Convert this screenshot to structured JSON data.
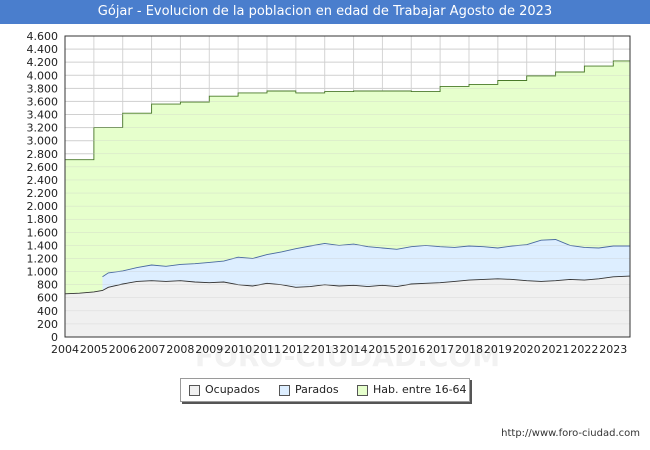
{
  "header": {
    "title": "Gójar - Evolucion de la poblacion en edad de Trabajar Agosto de 2023"
  },
  "source": {
    "url": "http://www.foro-ciudad.com"
  },
  "watermark": "FORO-CIUDAD.COM",
  "legend": {
    "items": [
      {
        "label": "Ocupados",
        "color": "#f0f0f0"
      },
      {
        "label": "Parados",
        "color": "#ddeeff"
      },
      {
        "label": "Hab. entre 16-64",
        "color": "#e6ffcc"
      }
    ]
  },
  "chart_data": {
    "type": "area",
    "title": "Gójar - Evolucion de la poblacion en edad de Trabajar Agosto de 2023",
    "xlabel": "",
    "ylabel": "",
    "xlim": [
      2004,
      2023.58
    ],
    "ylim": [
      0,
      4600
    ],
    "yticks": [
      0,
      200,
      400,
      600,
      800,
      1000,
      1200,
      1400,
      1600,
      1800,
      2000,
      2200,
      2400,
      2600,
      2800,
      3000,
      3200,
      3400,
      3600,
      3800,
      4000,
      4200,
      4400,
      4600
    ],
    "ytick_labels": [
      "0",
      "200",
      "400",
      "600",
      "800",
      "1.000",
      "1.200",
      "1.400",
      "1.600",
      "1.800",
      "2.000",
      "2.200",
      "2.400",
      "2.600",
      "2.800",
      "3.000",
      "3.200",
      "3.400",
      "3.600",
      "3.800",
      "4.000",
      "4.200",
      "4.400",
      "4.600"
    ],
    "xticks": [
      "2004",
      "2005",
      "2006",
      "2007",
      "2008",
      "2009",
      "2010",
      "2011",
      "2012",
      "2013",
      "2014",
      "2015",
      "2016",
      "2017",
      "2018",
      "2019",
      "2020",
      "2021",
      "2022",
      "2023"
    ],
    "grid": true,
    "legend_position": "bottom-center",
    "series": [
      {
        "name": "Hab. entre 16-64",
        "color": "#e6ffcc",
        "line": "#4a7a2a",
        "step": true,
        "x": [
          2004,
          2005,
          2006,
          2007,
          2008,
          2009,
          2010,
          2011,
          2012,
          2013,
          2014,
          2015,
          2016,
          2017,
          2018,
          2019,
          2020,
          2021,
          2022,
          2023,
          2023.58
        ],
        "values": [
          2710,
          3200,
          3420,
          3560,
          3590,
          3680,
          3730,
          3760,
          3730,
          3750,
          3760,
          3760,
          3750,
          3830,
          3860,
          3920,
          3990,
          4050,
          4140,
          4220,
          4220
        ]
      },
      {
        "name": "Parados",
        "color": "#ddeeff",
        "line": "#4a6aa0",
        "step": false,
        "x": [
          2005.3,
          2005.5,
          2006,
          2006.5,
          2007,
          2007.5,
          2008,
          2008.5,
          2009,
          2009.5,
          2010,
          2010.5,
          2011,
          2011.5,
          2012,
          2012.5,
          2013,
          2013.5,
          2014,
          2014.5,
          2015,
          2015.5,
          2016,
          2016.5,
          2017,
          2017.5,
          2018,
          2018.5,
          2019,
          2019.5,
          2020,
          2020.5,
          2021,
          2021.5,
          2022,
          2022.5,
          2023,
          2023.58
        ],
        "values": [
          920,
          980,
          1010,
          1060,
          1100,
          1080,
          1110,
          1120,
          1140,
          1160,
          1220,
          1200,
          1260,
          1300,
          1350,
          1390,
          1430,
          1400,
          1420,
          1380,
          1360,
          1340,
          1380,
          1400,
          1380,
          1370,
          1390,
          1380,
          1360,
          1390,
          1410,
          1480,
          1490,
          1400,
          1370,
          1360,
          1390,
          1390
        ]
      },
      {
        "name": "Ocupados",
        "color": "#f0f0f0",
        "line": "#333333",
        "step": false,
        "x": [
          2004,
          2004.5,
          2005,
          2005.3,
          2005.5,
          2006,
          2006.5,
          2007,
          2007.5,
          2008,
          2008.5,
          2009,
          2009.5,
          2010,
          2010.5,
          2011,
          2011.5,
          2012,
          2012.5,
          2013,
          2013.5,
          2014,
          2014.5,
          2015,
          2015.5,
          2016,
          2016.5,
          2017,
          2017.5,
          2018,
          2018.5,
          2019,
          2019.5,
          2020,
          2020.5,
          2021,
          2021.5,
          2022,
          2022.5,
          2023,
          2023.58
        ],
        "values": [
          660,
          670,
          690,
          710,
          760,
          810,
          850,
          860,
          850,
          860,
          840,
          830,
          840,
          800,
          780,
          820,
          800,
          760,
          770,
          800,
          780,
          790,
          770,
          790,
          770,
          810,
          820,
          830,
          850,
          870,
          880,
          890,
          880,
          860,
          850,
          860,
          880,
          870,
          890,
          920,
          930
        ]
      }
    ]
  }
}
